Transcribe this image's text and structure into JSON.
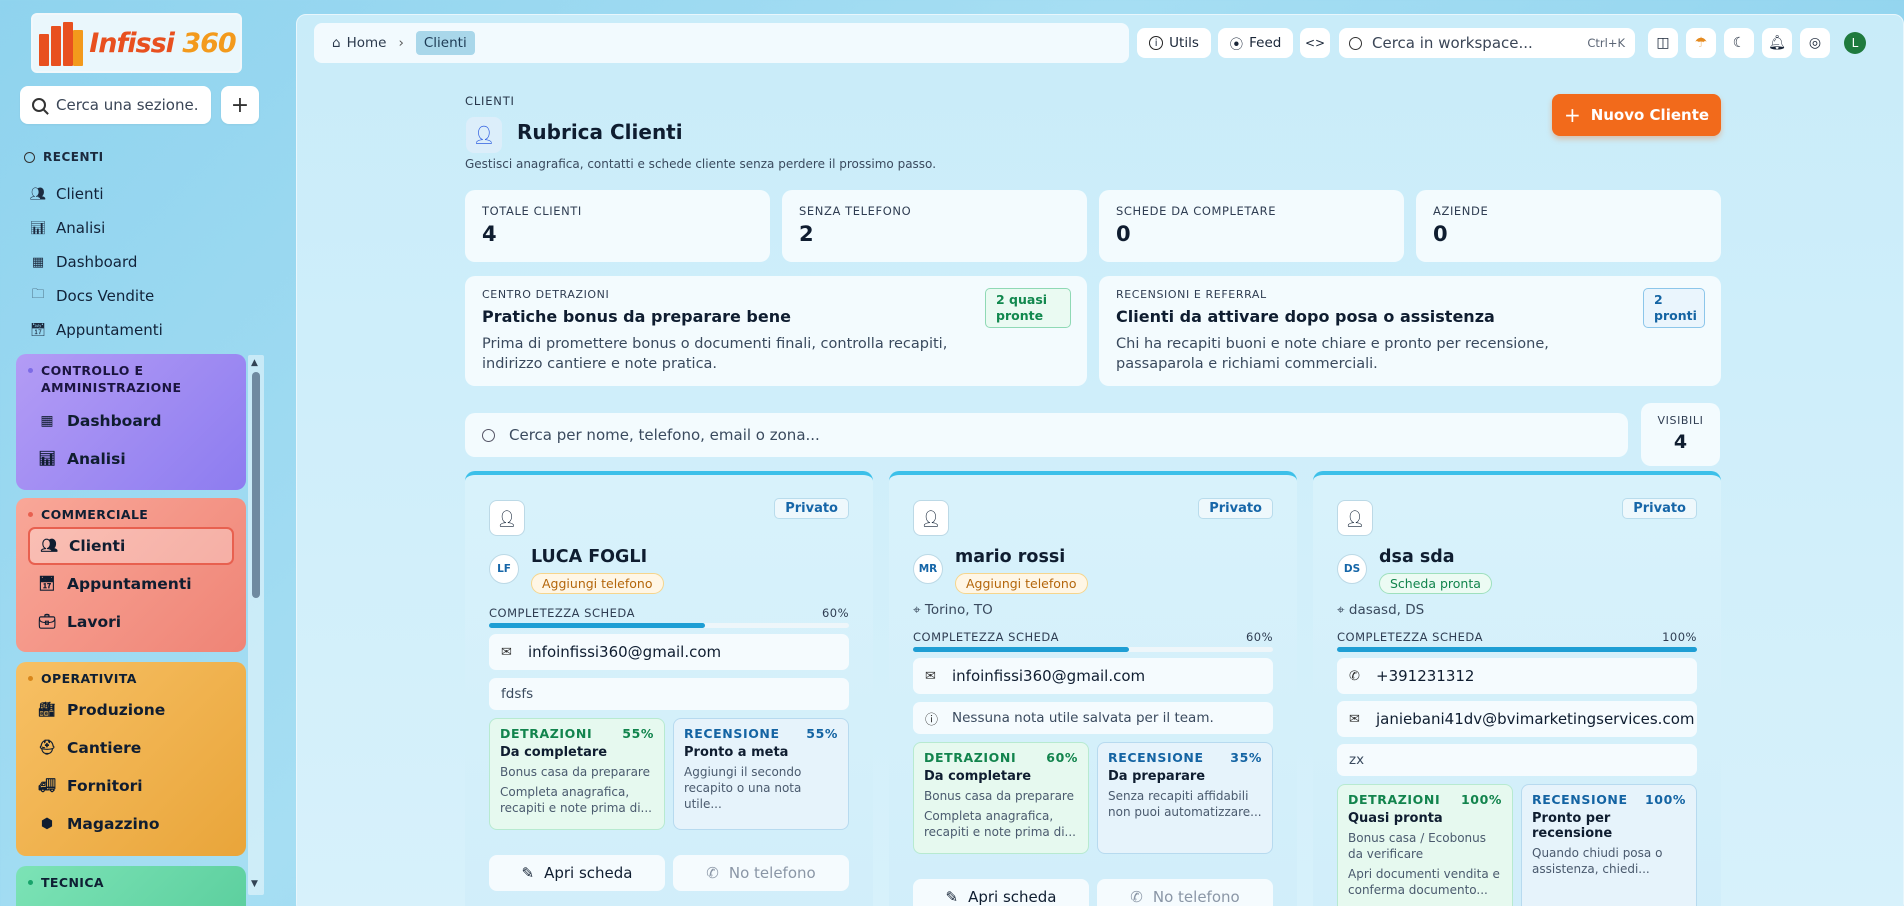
{
  "logo": {
    "text": "Infissi",
    "num": "360"
  },
  "sidebar": {
    "search_placeholder": "Cerca una sezione.",
    "recent_label": "RECENTI",
    "recent": [
      {
        "label": "Clienti",
        "icon": "users-icon"
      },
      {
        "label": "Analisi",
        "icon": "chart-icon"
      },
      {
        "label": "Dashboard",
        "icon": "grid-icon"
      },
      {
        "label": "Docs Vendite",
        "icon": "folder-icon"
      },
      {
        "label": "Appuntamenti",
        "icon": "calendar-icon"
      }
    ],
    "groups": [
      {
        "title": "CONTROLLO E AMMINISTRAZIONE",
        "items": [
          "Dashboard",
          "Analisi"
        ]
      },
      {
        "title": "COMMERCIALE",
        "items": [
          "Clienti",
          "Appuntamenti",
          "Lavori"
        ]
      },
      {
        "title": "OPERATIVITA",
        "items": [
          "Produzione",
          "Cantiere",
          "Fornitori",
          "Magazzino"
        ]
      },
      {
        "title": "TECNICA",
        "items": []
      }
    ]
  },
  "topbar": {
    "home": "Home",
    "current": "Clienti",
    "utils": "Utils",
    "feed": "Feed",
    "search_placeholder": "Cerca in workspace...",
    "shortcut": "Ctrl+K",
    "avatar": "L"
  },
  "page": {
    "eyebrow": "CLIENTI",
    "title": "Rubrica Clienti",
    "subtitle": "Gestisci anagrafica, contatti e schede cliente senza perdere il prossimo passo.",
    "new_button": "Nuovo Cliente"
  },
  "stats": [
    {
      "label": "TOTALE CLIENTI",
      "value": "4"
    },
    {
      "label": "SENZA TELEFONO",
      "value": "2"
    },
    {
      "label": "SCHEDE DA COMPLETARE",
      "value": "0"
    },
    {
      "label": "AZIENDE",
      "value": "0"
    }
  ],
  "panels": [
    {
      "label": "CENTRO DETRAZIONI",
      "title": "Pratiche bonus da preparare bene",
      "desc": "Prima di promettere bonus o documenti finali, controlla recapiti, indirizzo cantiere e note pratica.",
      "badge": "2 quasi pronte"
    },
    {
      "label": "RECENSIONI E REFERRAL",
      "title": "Clienti da attivare dopo posa o assistenza",
      "desc": "Chi ha recapiti buoni e note chiare e pronto per recensione, passaparola e richiami commerciali.",
      "badge": "2 pronti"
    }
  ],
  "list": {
    "search_placeholder": "Cerca per nome, telefono, email o zona...",
    "visible_label": "VISIBILI",
    "visible_value": "4"
  },
  "clients": [
    {
      "type": "Privato",
      "initials": "LF",
      "name": "LUCA FOGLI",
      "tag": "Aggiungi telefono",
      "location": "",
      "comp_label": "COMPLETEZZA SCHEDA",
      "comp_value": "60%",
      "comp": 0.6,
      "phone": "",
      "email": "infoinfissi360@gmail.com",
      "note": "fdsfs",
      "det": {
        "label": "DETRAZIONI",
        "pct": "55%",
        "status": "Da completare",
        "desc": "Bonus casa da preparare",
        "extra": "Completa anagrafica, recapiti e note prima di..."
      },
      "rec": {
        "label": "RECENSIONE",
        "pct": "55%",
        "status": "Pronto a meta",
        "desc": "Aggiungi il secondo recapito o una nota utile...",
        "extra": ""
      },
      "open": "Apri scheda",
      "call": "No telefono"
    },
    {
      "type": "Privato",
      "initials": "MR",
      "name": "mario rossi",
      "tag": "Aggiungi telefono",
      "location": "Torino, TO",
      "comp_label": "COMPLETEZZA SCHEDA",
      "comp_value": "60%",
      "comp": 0.6,
      "phone": "",
      "email": "infoinfissi360@gmail.com",
      "note": "Nessuna nota utile salvata per il team.",
      "det": {
        "label": "DETRAZIONI",
        "pct": "60%",
        "status": "Da completare",
        "desc": "Bonus casa da preparare",
        "extra": "Completa anagrafica, recapiti e note prima di..."
      },
      "rec": {
        "label": "RECENSIONE",
        "pct": "35%",
        "status": "Da preparare",
        "desc": "Senza recapiti affidabili non puoi automatizzare...",
        "extra": ""
      },
      "open": "Apri scheda",
      "call": "No telefono"
    },
    {
      "type": "Privato",
      "initials": "DS",
      "name": "dsa sda",
      "tag": "Scheda pronta",
      "location": "dasasd, DS",
      "comp_label": "COMPLETEZZA SCHEDA",
      "comp_value": "100%",
      "comp": 1.0,
      "phone": "+391231312",
      "email": "janiebani41dv@bvimarketingservices.com",
      "note": "zx",
      "det": {
        "label": "DETRAZIONI",
        "pct": "100%",
        "status": "Quasi pronta",
        "desc": "Bonus casa / Ecobonus da verificare",
        "extra": "Apri documenti vendita e conferma documento..."
      },
      "rec": {
        "label": "RECENSIONE",
        "pct": "100%",
        "status": "Pronto per recensione",
        "desc": "Quando chiudi posa o assistenza, chiedi...",
        "extra": ""
      },
      "open": "",
      "call": ""
    }
  ]
}
